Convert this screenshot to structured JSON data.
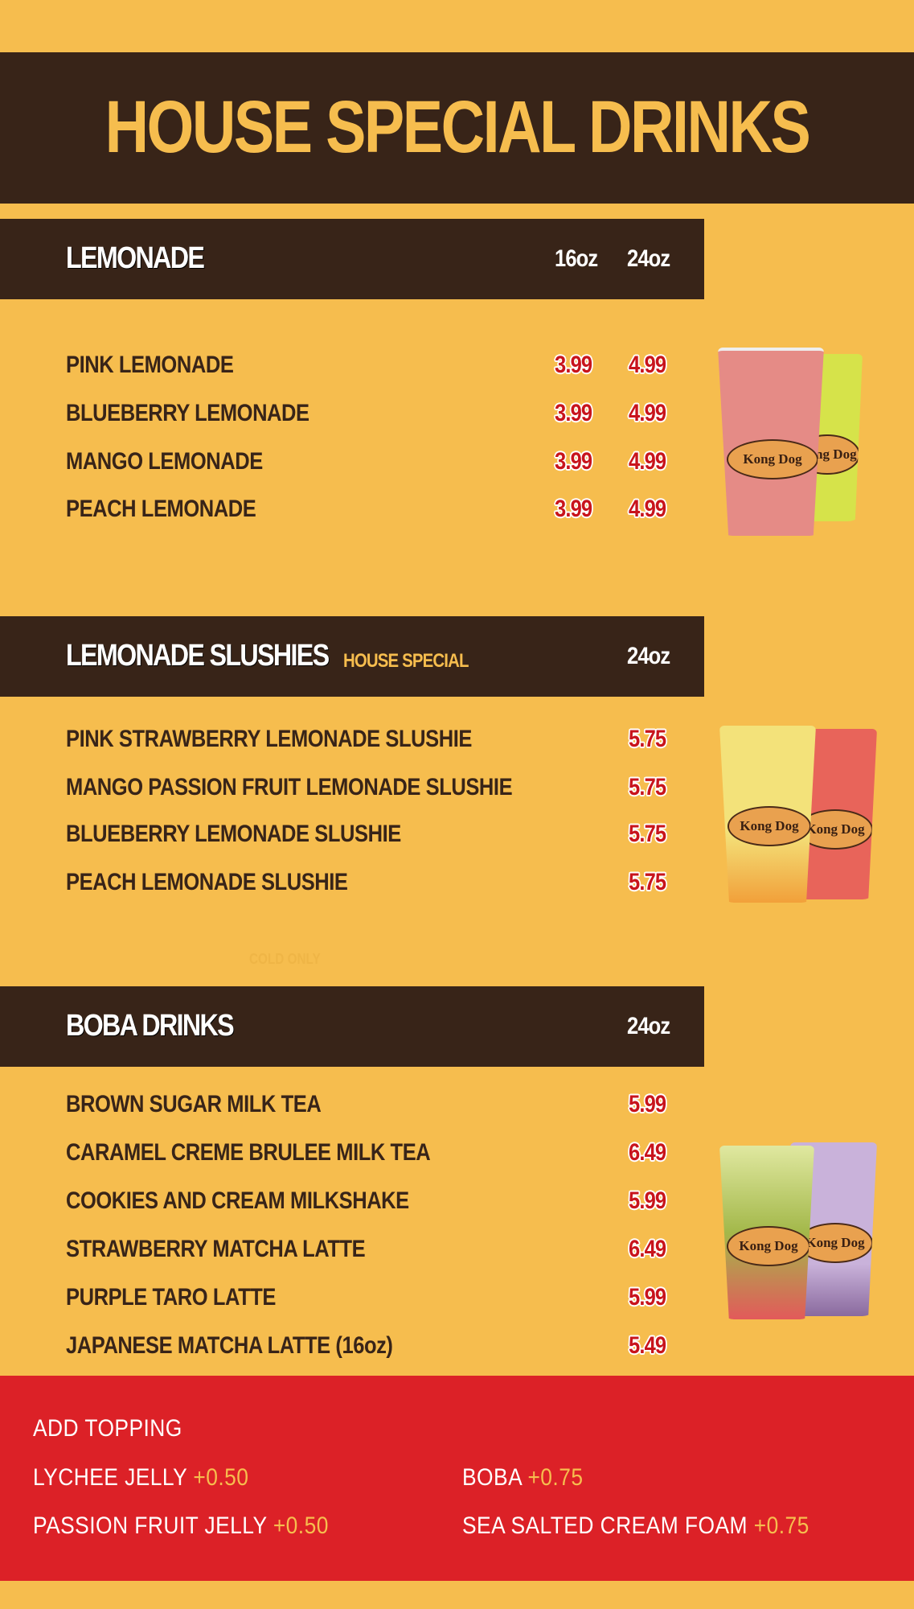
{
  "title": "HOUSE SPECIAL DRINKS",
  "sections": [
    {
      "title": "LEMONADE",
      "subtitle": "",
      "sizes": [
        "16oz",
        "24oz"
      ],
      "items": [
        {
          "name": "PINK LEMONADE",
          "prices": [
            "3.99",
            "4.99"
          ]
        },
        {
          "name": "BLUEBERRY LEMONADE",
          "prices": [
            "3.99",
            "4.99"
          ]
        },
        {
          "name": "MANGO LEMONADE",
          "prices": [
            "3.99",
            "4.99"
          ]
        },
        {
          "name": "PEACH LEMONADE",
          "prices": [
            "3.99",
            "4.99"
          ]
        }
      ]
    },
    {
      "title": "LEMONADE SLUSHIES",
      "subtitle": "HOUSE SPECIAL",
      "sizes": [
        "24oz"
      ],
      "note": "COLD ONLY",
      "items": [
        {
          "name": "PINK STRAWBERRY LEMONADE SLUSHIE",
          "prices": [
            "5.75"
          ]
        },
        {
          "name": "MANGO PASSION FRUIT LEMONADE SLUSHIE",
          "prices": [
            "5.75"
          ]
        },
        {
          "name": "BLUEBERRY LEMONADE SLUSHIE",
          "prices": [
            "5.75"
          ]
        },
        {
          "name": "PEACH LEMONADE SLUSHIE",
          "prices": [
            "5.75"
          ]
        }
      ]
    },
    {
      "title": "BOBA DRINKS",
      "subtitle": "",
      "sizes": [
        "24oz"
      ],
      "items": [
        {
          "name": "BROWN SUGAR MILK TEA",
          "prices": [
            "5.99"
          ]
        },
        {
          "name": "CARAMEL CREME BRULEE MILK TEA",
          "prices": [
            "6.49"
          ]
        },
        {
          "name": "COOKIES AND CREAM MILKSHAKE",
          "prices": [
            "5.99"
          ]
        },
        {
          "name": "STRAWBERRY MATCHA LATTE",
          "prices": [
            "6.49"
          ]
        },
        {
          "name": "PURPLE TARO LATTE",
          "prices": [
            "5.99"
          ]
        },
        {
          "name": "JAPANESE MATCHA LATTE (16oz)",
          "prices": [
            "5.49"
          ]
        }
      ]
    }
  ],
  "toppings": {
    "title": "ADD TOPPING",
    "items": [
      {
        "name": "LYCHEE JELLY",
        "price": "+0.50"
      },
      {
        "name": "BOBA",
        "price": "+0.75"
      },
      {
        "name": "PASSION FRUIT JELLY",
        "price": "+0.50"
      },
      {
        "name": "SEA SALTED CREAM FOAM",
        "price": "+0.75"
      }
    ]
  },
  "cup_logo_text": "Kong Dog",
  "colors": {
    "background": "#F6BD4E",
    "bar": "#382418",
    "price": "#C8141C",
    "footer": "#DC2127"
  }
}
